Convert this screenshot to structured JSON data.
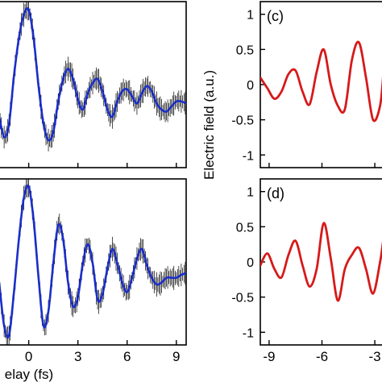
{
  "figure": {
    "shared_xlabel_left": "elay (fs)",
    "shared_ylabel_right": "Electric field (a.u.)",
    "colors": {
      "left_trace": "#1a2ec9",
      "right_trace": "#d61a1a",
      "error_bars": "#000000",
      "axis": "#000000"
    }
  },
  "chart_data": [
    {
      "type": "line",
      "panel": "top-left",
      "title": "",
      "xlabel": "",
      "ylabel": "",
      "xlim": [
        -1.8,
        9.6
      ],
      "ylim": [
        -0.55,
        1.08
      ],
      "xticks": [
        0,
        3,
        6,
        9
      ],
      "xtick_labels": [
        "",
        "",
        "",
        ""
      ],
      "error_bars": true,
      "series": [
        {
          "x": [
            -1.8,
            -1.5,
            -1.2,
            -0.9,
            -0.6,
            -0.3,
            0.0,
            0.3,
            0.6,
            0.9,
            1.2,
            1.5,
            1.8,
            2.1,
            2.4,
            2.7,
            3.0,
            3.3,
            3.6,
            3.9,
            4.2,
            4.5,
            4.8,
            5.1,
            5.4,
            5.7,
            6.0,
            6.3,
            6.6,
            6.9,
            7.2,
            7.5,
            7.8,
            8.1,
            8.4,
            8.7,
            9.0,
            9.3,
            9.6
          ],
          "y": [
            -0.05,
            -0.25,
            -0.12,
            0.35,
            0.72,
            0.95,
            1.0,
            0.72,
            0.25,
            -0.12,
            -0.28,
            -0.2,
            0.1,
            0.32,
            0.42,
            0.32,
            0.12,
            0.02,
            0.18,
            0.28,
            0.32,
            0.2,
            0.02,
            -0.05,
            0.1,
            0.2,
            0.22,
            0.15,
            0.08,
            0.18,
            0.25,
            0.2,
            0.08,
            0.02,
            0.0,
            0.05,
            0.1,
            0.1,
            0.08
          ]
        }
      ]
    },
    {
      "type": "line",
      "panel": "bottom-left",
      "title": "",
      "xlabel": "elay (fs)",
      "ylabel": "",
      "xlim": [
        -1.8,
        9.6
      ],
      "ylim": [
        -0.65,
        1.08
      ],
      "xticks": [
        0,
        3,
        6,
        9
      ],
      "xtick_labels": [
        "0",
        "3",
        "6",
        "9"
      ],
      "error_bars": true,
      "series": [
        {
          "x": [
            -1.8,
            -1.5,
            -1.2,
            -0.9,
            -0.6,
            -0.3,
            0.0,
            0.3,
            0.6,
            0.9,
            1.2,
            1.5,
            1.8,
            2.1,
            2.4,
            2.7,
            3.0,
            3.3,
            3.6,
            3.9,
            4.2,
            4.5,
            4.8,
            5.1,
            5.4,
            5.7,
            6.0,
            6.3,
            6.6,
            6.9,
            7.2,
            7.5,
            7.8,
            8.1,
            8.4,
            8.7,
            9.0,
            9.3,
            9.6
          ],
          "y": [
            0.0,
            -0.45,
            -0.55,
            -0.1,
            0.45,
            0.88,
            1.0,
            0.65,
            0.05,
            -0.45,
            -0.3,
            0.2,
            0.6,
            0.45,
            0.0,
            -0.25,
            -0.15,
            0.2,
            0.4,
            0.2,
            -0.18,
            -0.12,
            0.15,
            0.35,
            0.2,
            0.0,
            -0.1,
            0.05,
            0.25,
            0.35,
            0.18,
            0.05,
            -0.02,
            0.0,
            0.05,
            0.05,
            0.05,
            0.08,
            0.1
          ]
        }
      ]
    },
    {
      "type": "line",
      "panel": "top-right",
      "title": "(c)",
      "xlabel": "",
      "ylabel": "Electric field (a.u.)",
      "xlim": [
        -9.5,
        -2.5
      ],
      "ylim": [
        -1.18,
        1.18
      ],
      "xticks": [
        -9,
        -6,
        -3
      ],
      "xtick_labels": [
        "",
        "",
        ""
      ],
      "yticks": [
        -1,
        -0.5,
        0,
        0.5,
        1
      ],
      "ytick_labels": [
        "-1",
        "-0.5",
        "0",
        "0.5",
        "1"
      ],
      "series": [
        {
          "x": [
            -9.5,
            -9.1,
            -8.7,
            -8.3,
            -7.9,
            -7.5,
            -7.1,
            -6.7,
            -6.3,
            -5.9,
            -5.5,
            -5.1,
            -4.7,
            -4.3,
            -3.9,
            -3.5,
            -3.1,
            -2.7,
            -2.5
          ],
          "y": [
            0.1,
            -0.05,
            -0.2,
            -0.1,
            0.15,
            0.2,
            -0.1,
            -0.28,
            0.18,
            0.5,
            0.0,
            -0.3,
            -0.35,
            0.35,
            0.6,
            0.1,
            -0.5,
            -0.3,
            0.2
          ]
        }
      ]
    },
    {
      "type": "line",
      "panel": "bottom-right",
      "title": "(d)",
      "xlabel": "",
      "ylabel": "",
      "xlim": [
        -9.5,
        -2.5
      ],
      "ylim": [
        -1.18,
        1.18
      ],
      "xticks": [
        -9,
        -6,
        -3
      ],
      "xtick_labels": [
        "-9",
        "-6",
        "-3"
      ],
      "yticks": [
        -1,
        -0.5,
        0,
        0.5,
        1
      ],
      "ytick_labels": [
        "-1",
        "-0.5",
        "0",
        "0.5",
        "1"
      ],
      "series": [
        {
          "x": [
            -9.5,
            -9.1,
            -8.7,
            -8.3,
            -7.9,
            -7.5,
            -7.1,
            -6.7,
            -6.3,
            -5.9,
            -5.5,
            -5.1,
            -4.7,
            -4.3,
            -3.9,
            -3.5,
            -3.1,
            -2.7,
            -2.5
          ],
          "y": [
            -0.05,
            0.12,
            -0.1,
            -0.22,
            0.1,
            0.3,
            -0.05,
            -0.35,
            -0.1,
            0.55,
            0.05,
            -0.55,
            -0.1,
            0.1,
            0.2,
            -0.1,
            -0.45,
            0.0,
            0.35
          ]
        }
      ]
    }
  ]
}
